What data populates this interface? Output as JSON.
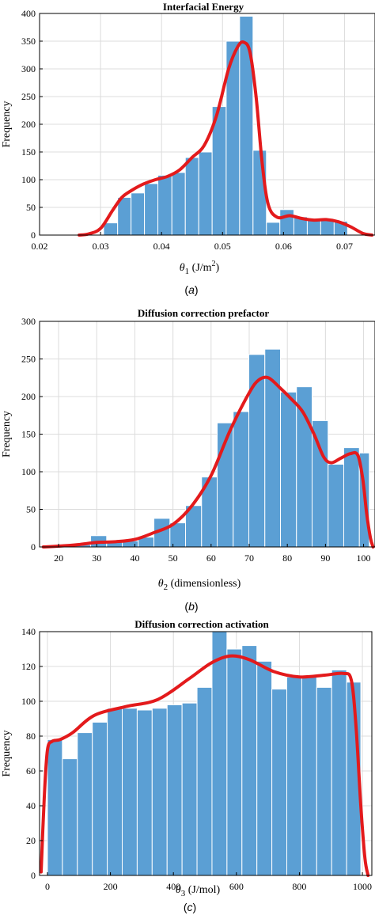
{
  "chart_data": [
    {
      "type": "bar",
      "title": "Interfacial Energy",
      "xlabel": "θ1 (J/m2)",
      "ylabel": "Frequency",
      "caption": "(a)",
      "xlim": [
        0.02,
        0.075
      ],
      "ylim": [
        0,
        400
      ],
      "xticks": [
        0.02,
        0.03,
        0.04,
        0.05,
        0.06,
        0.07
      ],
      "xtick_labels": [
        "0.02",
        "0.03",
        "0.04",
        "0.05",
        "0.06",
        "0.07"
      ],
      "yticks": [
        0,
        50,
        100,
        150,
        200,
        250,
        300,
        350,
        400
      ],
      "grid": true,
      "bins": [
        {
          "x0": 0.0305,
          "x1": 0.0328,
          "value": 22
        },
        {
          "x0": 0.0328,
          "x1": 0.035,
          "value": 68
        },
        {
          "x0": 0.035,
          "x1": 0.0372,
          "value": 76
        },
        {
          "x0": 0.0372,
          "x1": 0.0394,
          "value": 93
        },
        {
          "x0": 0.0394,
          "x1": 0.0417,
          "value": 108
        },
        {
          "x0": 0.0417,
          "x1": 0.0439,
          "value": 113
        },
        {
          "x0": 0.0439,
          "x1": 0.0461,
          "value": 140
        },
        {
          "x0": 0.0461,
          "x1": 0.0483,
          "value": 150
        },
        {
          "x0": 0.0483,
          "x1": 0.0506,
          "value": 232
        },
        {
          "x0": 0.0506,
          "x1": 0.0528,
          "value": 350
        },
        {
          "x0": 0.0528,
          "x1": 0.055,
          "value": 395
        },
        {
          "x0": 0.055,
          "x1": 0.0572,
          "value": 153
        },
        {
          "x0": 0.0572,
          "x1": 0.0594,
          "value": 23
        },
        {
          "x0": 0.0594,
          "x1": 0.0617,
          "value": 46
        },
        {
          "x0": 0.0617,
          "x1": 0.0639,
          "value": 33
        },
        {
          "x0": 0.0639,
          "x1": 0.0661,
          "value": 27
        },
        {
          "x0": 0.0661,
          "x1": 0.0683,
          "value": 27
        },
        {
          "x0": 0.0683,
          "x1": 0.0705,
          "value": 25
        }
      ],
      "density_curve": {
        "x": [
          0.0265,
          0.028,
          0.03,
          0.032,
          0.0335,
          0.035,
          0.037,
          0.039,
          0.041,
          0.043,
          0.045,
          0.047,
          0.049,
          0.051,
          0.0525,
          0.0535,
          0.0545,
          0.0555,
          0.0565,
          0.0575,
          0.059,
          0.061,
          0.063,
          0.065,
          0.067,
          0.069,
          0.071,
          0.073,
          0.0745
        ],
        "y": [
          0,
          2,
          12,
          45,
          68,
          80,
          92,
          100,
          106,
          118,
          140,
          162,
          215,
          300,
          340,
          348,
          330,
          250,
          130,
          55,
          32,
          35,
          30,
          27,
          28,
          24,
          15,
          3,
          0
        ]
      }
    },
    {
      "type": "bar",
      "title": "Diffusion correction prefactor",
      "xlabel": "θ2 (dimensionless)",
      "ylabel": "Frequency",
      "caption": "(b)",
      "xlim": [
        15,
        103
      ],
      "ylim": [
        0,
        300
      ],
      "xticks": [
        20,
        30,
        40,
        50,
        60,
        70,
        80,
        90,
        100
      ],
      "xtick_labels": [
        "20",
        "30",
        "40",
        "50",
        "60",
        "70",
        "80",
        "90",
        "100"
      ],
      "yticks": [
        0,
        50,
        100,
        150,
        200,
        250,
        300
      ],
      "grid": true,
      "bins": [
        {
          "x0": 16,
          "x1": 20.1,
          "value": 1
        },
        {
          "x0": 20.1,
          "x1": 24.3,
          "value": 2
        },
        {
          "x0": 24.3,
          "x1": 28.4,
          "value": 3
        },
        {
          "x0": 28.4,
          "x1": 32.6,
          "value": 15
        },
        {
          "x0": 32.6,
          "x1": 36.7,
          "value": 8
        },
        {
          "x0": 36.7,
          "x1": 40.9,
          "value": 8
        },
        {
          "x0": 40.9,
          "x1": 45.0,
          "value": 13
        },
        {
          "x0": 45.0,
          "x1": 49.2,
          "value": 38
        },
        {
          "x0": 49.2,
          "x1": 53.3,
          "value": 32
        },
        {
          "x0": 53.3,
          "x1": 57.5,
          "value": 55
        },
        {
          "x0": 57.5,
          "x1": 61.6,
          "value": 93
        },
        {
          "x0": 61.6,
          "x1": 65.8,
          "value": 165
        },
        {
          "x0": 65.8,
          "x1": 69.9,
          "value": 180
        },
        {
          "x0": 69.9,
          "x1": 74.1,
          "value": 256
        },
        {
          "x0": 74.1,
          "x1": 78.2,
          "value": 263
        },
        {
          "x0": 78.2,
          "x1": 82.4,
          "value": 206
        },
        {
          "x0": 82.4,
          "x1": 86.5,
          "value": 213
        },
        {
          "x0": 86.5,
          "x1": 90.7,
          "value": 168
        },
        {
          "x0": 90.7,
          "x1": 94.8,
          "value": 110
        },
        {
          "x0": 94.8,
          "x1": 98.9,
          "value": 132
        },
        {
          "x0": 98.9,
          "x1": 101.5,
          "value": 125
        }
      ],
      "density_curve": {
        "x": [
          16,
          20,
          25,
          30,
          35,
          40,
          45,
          50,
          55,
          60,
          65,
          70,
          72.5,
          75,
          78,
          81,
          84,
          87,
          89.5,
          91.5,
          94,
          96.5,
          98.5,
          99.8,
          100.8,
          101.8,
          102.5
        ],
        "y": [
          0,
          1,
          3,
          6,
          7,
          10,
          19,
          30,
          55,
          95,
          155,
          205,
          222,
          225,
          212,
          197,
          180,
          150,
          120,
          112,
          118,
          124,
          122,
          90,
          45,
          12,
          0
        ]
      }
    },
    {
      "type": "bar",
      "title": "Diffusion correction activation",
      "xlabel": "θ3 (J/mol)",
      "ylabel": "Frequency",
      "caption": "(c)",
      "xlim": [
        -25,
        1030
      ],
      "ylim": [
        0,
        140
      ],
      "xticks": [
        0,
        200,
        400,
        600,
        800,
        1000
      ],
      "xtick_labels": [
        "0",
        "200",
        "400",
        "600",
        "800",
        "1000"
      ],
      "yticks": [
        0,
        20,
        40,
        60,
        80,
        100,
        120,
        140
      ],
      "grid": true,
      "bins": [
        {
          "x0": 0,
          "x1": 47.5,
          "value": 78
        },
        {
          "x0": 47.5,
          "x1": 95,
          "value": 67
        },
        {
          "x0": 95,
          "x1": 142.5,
          "value": 82
        },
        {
          "x0": 142.5,
          "x1": 190,
          "value": 88
        },
        {
          "x0": 190,
          "x1": 237.5,
          "value": 96
        },
        {
          "x0": 237.5,
          "x1": 285,
          "value": 96
        },
        {
          "x0": 285,
          "x1": 332.5,
          "value": 95
        },
        {
          "x0": 332.5,
          "x1": 380,
          "value": 96
        },
        {
          "x0": 380,
          "x1": 427.5,
          "value": 98
        },
        {
          "x0": 427.5,
          "x1": 475,
          "value": 99
        },
        {
          "x0": 475,
          "x1": 522.5,
          "value": 108
        },
        {
          "x0": 522.5,
          "x1": 570,
          "value": 140
        },
        {
          "x0": 570,
          "x1": 617.5,
          "value": 130
        },
        {
          "x0": 617.5,
          "x1": 665,
          "value": 132
        },
        {
          "x0": 665,
          "x1": 712.5,
          "value": 123
        },
        {
          "x0": 712.5,
          "x1": 760,
          "value": 107
        },
        {
          "x0": 760,
          "x1": 807.5,
          "value": 114
        },
        {
          "x0": 807.5,
          "x1": 855,
          "value": 114
        },
        {
          "x0": 855,
          "x1": 902.5,
          "value": 108
        },
        {
          "x0": 902.5,
          "x1": 950,
          "value": 118
        },
        {
          "x0": 950,
          "x1": 995,
          "value": 111
        }
      ],
      "density_curve": {
        "x": [
          -20,
          -10,
          0,
          15,
          40,
          80,
          150,
          250,
          350,
          450,
          520,
          580,
          640,
          720,
          800,
          880,
          940,
          965,
          980,
          995,
          1008,
          1018
        ],
        "y": [
          2,
          45,
          72,
          77,
          78,
          82,
          92,
          97,
          101,
          113,
          122,
          126,
          124,
          117,
          114,
          115,
          116,
          112,
          85,
          40,
          10,
          0
        ]
      }
    }
  ]
}
